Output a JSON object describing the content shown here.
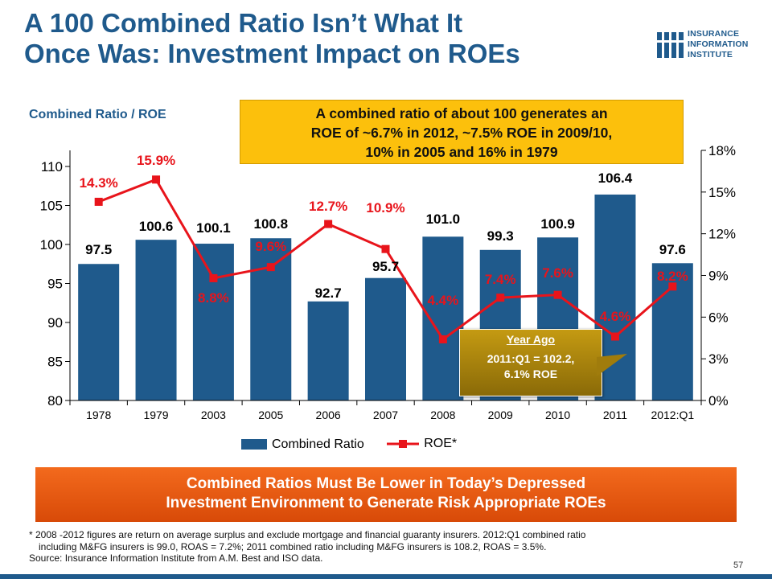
{
  "title_line1": "A 100 Combined Ratio Isn’t What It",
  "title_line2": "Once Was: Investment Impact on ROEs",
  "logo": {
    "line1": "INSURANCE",
    "line2": "INFORMATION",
    "line3": "INSTITUTE",
    "color": "#1f5a8c"
  },
  "subtitle": "Combined Ratio / ROE",
  "callout": {
    "line1": "A combined ratio of about 100 generates an",
    "line2": "ROE of ~6.7% in 2012, ~7.5% ROE in 2009/10,",
    "line3": "10% in 2005 and 16% in 1979"
  },
  "year_ago": {
    "head": "Year Ago",
    "line1": "2011:Q1 = 102.2,",
    "line2": "6.1% ROE"
  },
  "banner": {
    "line1": "Combined Ratios Must Be Lower in Today’s Depressed",
    "line2": "Investment Environment to Generate Risk Appropriate ROEs"
  },
  "footnote": {
    "line1": "* 2008 -2012 figures  are return on average surplus and exclude mortgage and financial guaranty insurers. 2012:Q1 combined ratio",
    "line2": "including M&FG insurers is 99.0, ROAS = 7.2%; 2011 combined ratio including M&FG insurers is 108.2, ROAS = 3.5%.",
    "line3": "Source: Insurance Information Institute from A.M. Best and ISO data."
  },
  "page_number": "57",
  "chart_data": {
    "type": "bar",
    "categories": [
      "1978",
      "1979",
      "2003",
      "2005",
      "2006",
      "2007",
      "2008",
      "2009",
      "2010",
      "2011",
      "2012:Q1"
    ],
    "series": [
      {
        "name": "Combined Ratio",
        "type": "bar",
        "axis": "left",
        "color": "#1f5a8c",
        "values": [
          97.5,
          100.6,
          100.1,
          100.8,
          92.7,
          95.7,
          101.0,
          99.3,
          100.9,
          106.4,
          97.6
        ],
        "labels": [
          "97.5",
          "100.6",
          "100.1",
          "100.8",
          "92.7",
          "95.7",
          "101.0",
          "99.3",
          "100.9",
          "106.4",
          "97.6"
        ]
      },
      {
        "name": "ROE*",
        "type": "line",
        "axis": "right",
        "color": "#e8141b",
        "values": [
          14.3,
          15.9,
          8.8,
          9.6,
          12.7,
          10.9,
          4.4,
          7.4,
          7.6,
          4.6,
          8.2
        ],
        "labels": [
          "14.3%",
          "15.9%",
          "8.8%",
          "9.6%",
          "12.7%",
          "10.9%",
          "4.4%",
          "7.4%",
          "7.6%",
          "4.6%",
          "8.2%"
        ]
      }
    ],
    "y_left": {
      "min": 80,
      "max": 110,
      "ticks": [
        80,
        85,
        90,
        95,
        100,
        105,
        110
      ]
    },
    "y_right": {
      "min": 0,
      "max": 18,
      "ticks": [
        "0%",
        "3%",
        "6%",
        "9%",
        "12%",
        "15%",
        "18%"
      ]
    },
    "legend_position": "bottom",
    "grid": false
  }
}
